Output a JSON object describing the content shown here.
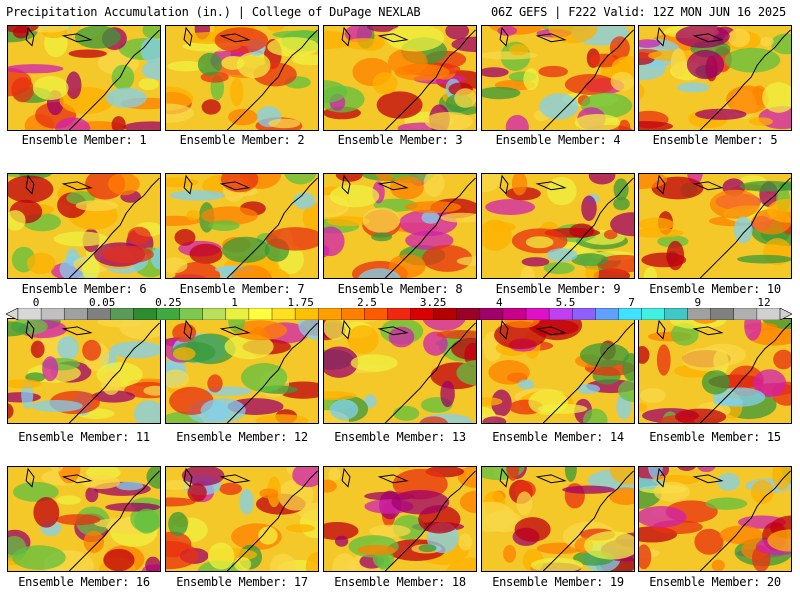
{
  "header": {
    "left": "Precipitation Accumulation (in.) | College of DuPage NEXLAB",
    "right": "06Z GEFS | F222 Valid: 12Z MON JUN 16 2025"
  },
  "panels": [
    {
      "label": "Ensemble Member: 1"
    },
    {
      "label": "Ensemble Member: 2"
    },
    {
      "label": "Ensemble Member: 3"
    },
    {
      "label": "Ensemble Member: 4"
    },
    {
      "label": "Ensemble Member: 5"
    },
    {
      "label": "Ensemble Member: 6"
    },
    {
      "label": "Ensemble Member: 7"
    },
    {
      "label": "Ensemble Member: 8"
    },
    {
      "label": "Ensemble Member: 9"
    },
    {
      "label": "Ensemble Member: 10"
    },
    {
      "label": "Ensemble Member: 11"
    },
    {
      "label": "Ensemble Member: 12"
    },
    {
      "label": "Ensemble Member: 13"
    },
    {
      "label": "Ensemble Member: 14"
    },
    {
      "label": "Ensemble Member: 15"
    },
    {
      "label": "Ensemble Member: 16"
    },
    {
      "label": "Ensemble Member: 17"
    },
    {
      "label": "Ensemble Member: 18"
    },
    {
      "label": "Ensemble Member: 19"
    },
    {
      "label": "Ensemble Member: 20"
    }
  ],
  "colorbar": {
    "tick_labels": [
      "0",
      "0.05",
      "0.25",
      "1",
      "1.75",
      "2.5",
      "3.25",
      "4",
      "5.5",
      "7",
      "9",
      "12"
    ],
    "colors": [
      "#d8d8d8",
      "#c0c0c0",
      "#a0a0a0",
      "#808080",
      "#5a9a5a",
      "#2e8b2e",
      "#3faa3f",
      "#7ec850",
      "#b8e05a",
      "#e8f040",
      "#ffff40",
      "#ffe020",
      "#ffc000",
      "#ffa000",
      "#ff8000",
      "#ff5a00",
      "#f02810",
      "#d80000",
      "#b40000",
      "#9a0028",
      "#a0006a",
      "#c8008c",
      "#e010c8",
      "#c040f0",
      "#9060ff",
      "#60a0ff",
      "#40e0ff",
      "#40f0e0",
      "#40c8c8",
      "#a0a0a0",
      "#808080",
      "#b0b0b0",
      "#d0d0d0"
    ]
  }
}
